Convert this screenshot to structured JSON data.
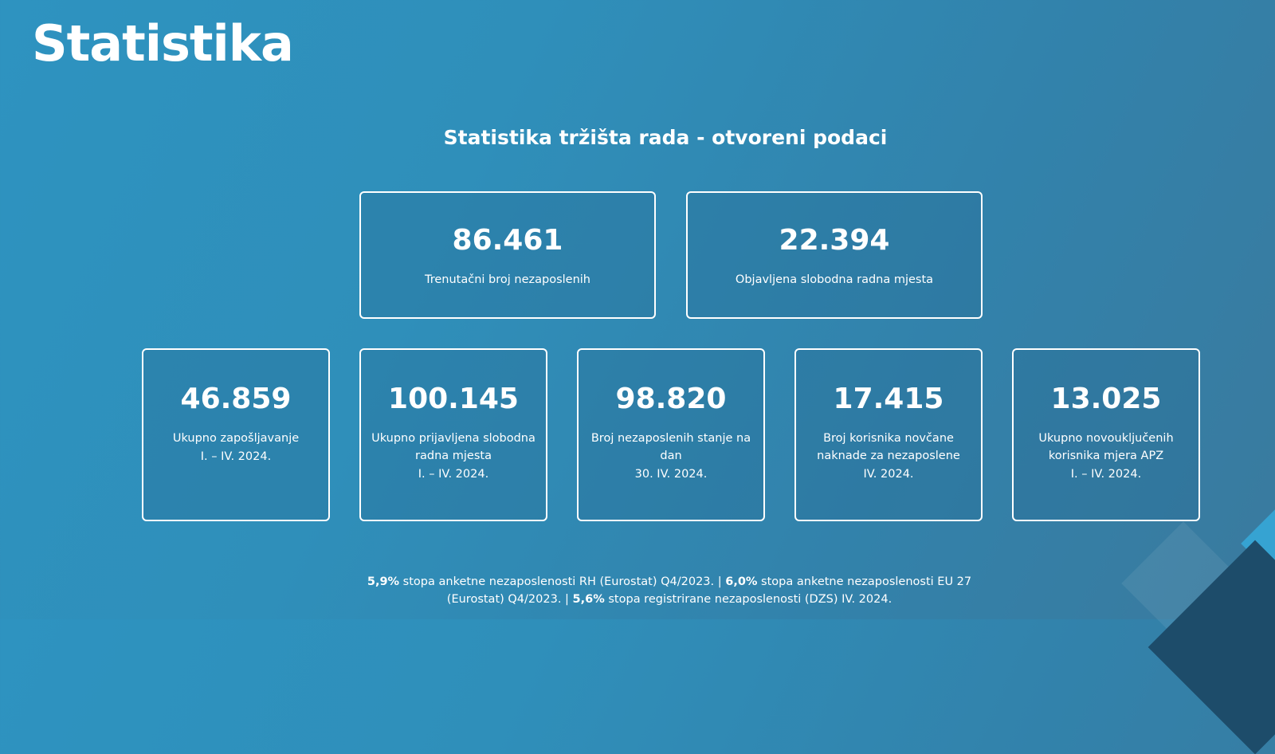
{
  "page": {
    "heading": "Statistika",
    "section_title": "Statistika tržišta rada - otvoreni podaci"
  },
  "top_cards": [
    {
      "value": "86.461",
      "label": "Trenutačni broj nezaposlenih"
    },
    {
      "value": "22.394",
      "label": "Objavljena slobodna radna mjesta"
    }
  ],
  "bottom_cards": [
    {
      "value": "46.859",
      "label": "Ukupno zapošljavanje",
      "period": "I. – IV. 2024."
    },
    {
      "value": "100.145",
      "label": "Ukupno prijavljena slobodna radna mjesta",
      "period": "I. – IV. 2024."
    },
    {
      "value": "98.820",
      "label": "Broj nezaposlenih stanje na dan",
      "period": "30. IV. 2024."
    },
    {
      "value": "17.415",
      "label": "Broj korisnika novčane naknade za nezaposlene",
      "period": "IV. 2024."
    },
    {
      "value": "13.025",
      "label": "Ukupno novouključenih korisnika mjera APZ",
      "period": "I. – IV. 2024."
    }
  ],
  "footer": {
    "rate1_value": "5,9%",
    "rate1_text": " stopa anketne nezaposlenosti RH (Eurostat) Q4/2023. | ",
    "rate2_value": "6,0%",
    "rate2_text": " stopa anketne nezaposlenosti EU 27 (Eurostat) Q4/2023. | ",
    "rate3_value": "5,6%",
    "rate3_text": " stopa registrirane nezaposlenosti (DZS) IV. 2024."
  },
  "colors": {
    "background": "#2e93c0",
    "card_border": "#ffffff",
    "accent_dark": "#1d4c6a"
  }
}
